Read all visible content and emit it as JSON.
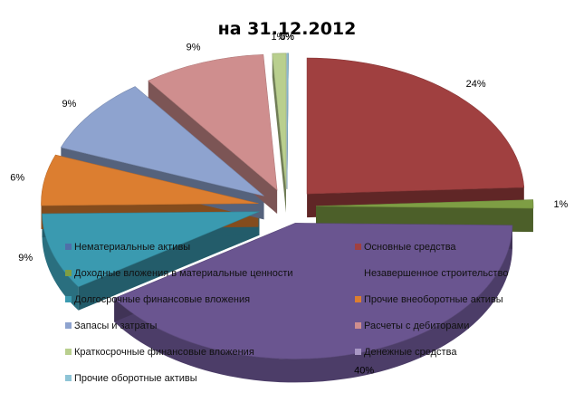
{
  "chart_data": {
    "type": "pie",
    "title": "на 31.12.2012",
    "style": "3d-exploded",
    "legend_position": "overlay-center",
    "series": [
      {
        "name": "Нематериальные активы",
        "value": 0,
        "label": "0%",
        "color": "#4F6FA8"
      },
      {
        "name": "Основные средства",
        "value": 24,
        "label": "24%",
        "color": "#A04040"
      },
      {
        "name": "Доходные вложения в материальные ценности",
        "value": 1,
        "label": "1%",
        "color": "#7E9E44"
      },
      {
        "name": "Незавершенное строительство",
        "value": 40,
        "label": "40%",
        "color": "#6A5590"
      },
      {
        "name": "Долгосрочные финансовые вложения",
        "value": 9,
        "label": "9%",
        "color": "#3A9AB0"
      },
      {
        "name": "Прочие внеоборотные активы",
        "value": 6,
        "label": "6%",
        "color": "#DC7E30"
      },
      {
        "name": "Запасы и затраты",
        "value": 9,
        "label": "9%",
        "color": "#8EA3CF"
      },
      {
        "name": "Расчеты с дебиторами",
        "value": 9,
        "label": "9%",
        "color": "#CF8E8E"
      },
      {
        "name": "Краткосрочные финансовые вложения",
        "value": 1,
        "label": "1%",
        "color": "#B9CF8E"
      },
      {
        "name": "Денежные средства",
        "value": 0,
        "label": "0%",
        "color": "#A897C4"
      },
      {
        "name": "Прочие оборотные активы",
        "value": 0,
        "label": "0%",
        "color": "#8EC4D6"
      }
    ]
  }
}
